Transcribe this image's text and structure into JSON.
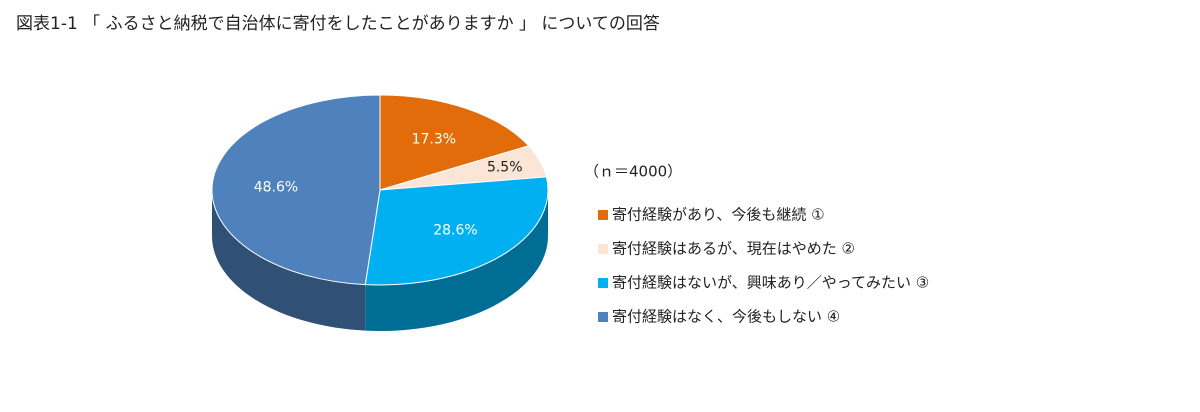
{
  "chart_data": {
    "type": "pie",
    "title": "図表1-1 「 ふるさと納税で自治体に寄付をしたことがありますか 」 についての回答",
    "subtitle": "（ｎ＝4000）",
    "categories": [
      "寄付経験があり、今後も継続 ①",
      "寄付経験はあるが、現在はやめた ②",
      "寄付経験はないが、興味あり／やってみたい ③",
      "寄付経験はなく、今後もしない ④"
    ],
    "values": [
      17.3,
      5.5,
      28.6,
      48.6
    ],
    "value_labels": [
      "17.3%",
      "5.5%",
      "28.6%",
      "48.6%"
    ],
    "colors": [
      "#e36c0a",
      "#fbe5d6",
      "#00b0f0",
      "#4f81bd"
    ],
    "legend": "right"
  }
}
